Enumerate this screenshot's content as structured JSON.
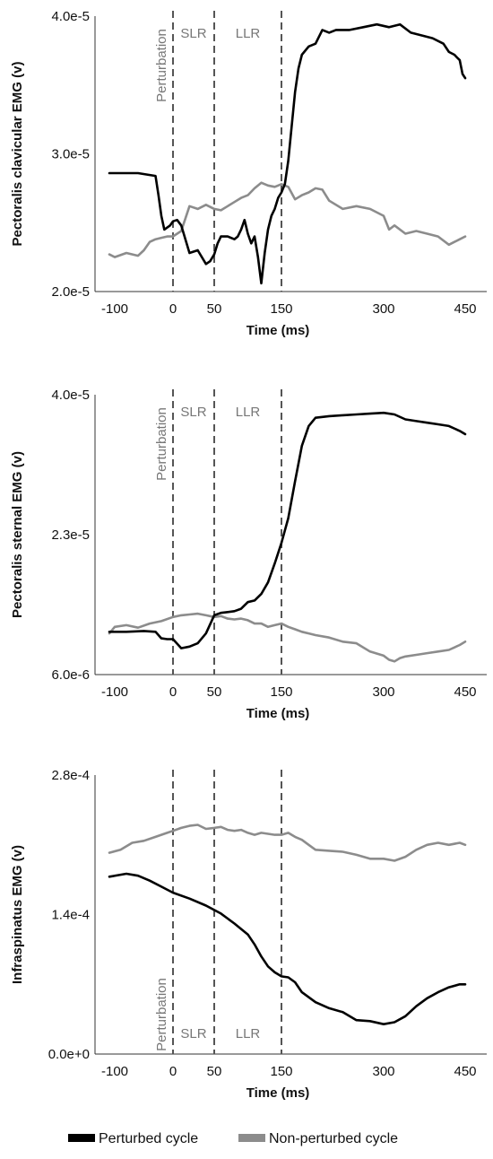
{
  "colors": {
    "perturbed": "#000000",
    "non_perturbed": "#8c8c8c",
    "marker": "#555555",
    "phase_text": "#777777"
  },
  "legend": [
    {
      "label": "Perturbed cycle",
      "series": "perturbed"
    },
    {
      "label": "Non-perturbed cycle",
      "series": "non_perturbed"
    }
  ],
  "chart_data": [
    {
      "type": "line",
      "title": "",
      "xlabel": "Time (ms)",
      "ylabel": "Pectoralis clavicular EMG (v)",
      "x_ticks": [
        "-100",
        "0",
        "50",
        "150",
        "300",
        "450"
      ],
      "y_ticks": [
        "2.0e-5",
        "3.0e-5",
        "4.0e-5"
      ],
      "ylim": [
        2e-05,
        4e-05
      ],
      "markers": [
        0,
        50,
        150
      ],
      "phase_labels": {
        "perturbation": "Perturbation",
        "slr": "SLR",
        "llr": "LLR"
      },
      "phase_labels_position": "top",
      "series": [
        {
          "key": "perturbed",
          "x": [
            -110,
            -60,
            -30,
            -25,
            -20,
            -15,
            -5,
            0,
            5,
            10,
            20,
            30,
            40,
            45,
            50,
            55,
            60,
            70,
            80,
            85,
            90,
            95,
            100,
            105,
            110,
            115,
            120,
            125,
            130,
            135,
            140,
            145,
            150,
            155,
            160,
            165,
            170,
            175,
            180,
            190,
            200,
            210,
            220,
            230,
            250,
            270,
            290,
            310,
            330,
            350,
            370,
            390,
            410,
            420,
            430,
            435,
            440,
            445,
            450
          ],
          "y": [
            2.86e-05,
            2.86e-05,
            2.84e-05,
            2.7e-05,
            2.55e-05,
            2.45e-05,
            2.48e-05,
            2.51e-05,
            2.52e-05,
            2.48e-05,
            2.28e-05,
            2.3e-05,
            2.2e-05,
            2.22e-05,
            2.27e-05,
            2.35e-05,
            2.4e-05,
            2.4e-05,
            2.38e-05,
            2.4e-05,
            2.45e-05,
            2.52e-05,
            2.42e-05,
            2.35e-05,
            2.4e-05,
            2.25e-05,
            2.06e-05,
            2.28e-05,
            2.45e-05,
            2.55e-05,
            2.6e-05,
            2.68e-05,
            2.72e-05,
            2.78e-05,
            2.95e-05,
            3.2e-05,
            3.45e-05,
            3.62e-05,
            3.72e-05,
            3.78e-05,
            3.8e-05,
            3.9e-05,
            3.88e-05,
            3.9e-05,
            3.9e-05,
            3.92e-05,
            3.94e-05,
            3.92e-05,
            3.94e-05,
            3.88e-05,
            3.86e-05,
            3.84e-05,
            3.8e-05,
            3.74e-05,
            3.72e-05,
            3.7e-05,
            3.68e-05,
            3.58e-05,
            3.55e-05
          ]
        },
        {
          "key": "non_perturbed",
          "x": [
            -110,
            -100,
            -80,
            -60,
            -50,
            -40,
            -30,
            -20,
            -10,
            0,
            10,
            20,
            30,
            40,
            50,
            60,
            70,
            80,
            90,
            100,
            110,
            120,
            130,
            140,
            150,
            160,
            170,
            180,
            190,
            200,
            210,
            220,
            240,
            260,
            280,
            300,
            310,
            320,
            340,
            360,
            380,
            400,
            420,
            430,
            440,
            450
          ],
          "y": [
            2.27e-05,
            2.25e-05,
            2.28e-05,
            2.26e-05,
            2.3e-05,
            2.36e-05,
            2.38e-05,
            2.39e-05,
            2.4e-05,
            2.4e-05,
            2.44e-05,
            2.62e-05,
            2.6e-05,
            2.63e-05,
            2.6e-05,
            2.59e-05,
            2.62e-05,
            2.65e-05,
            2.68e-05,
            2.7e-05,
            2.75e-05,
            2.79e-05,
            2.77e-05,
            2.76e-05,
            2.78e-05,
            2.76e-05,
            2.67e-05,
            2.7e-05,
            2.72e-05,
            2.75e-05,
            2.74e-05,
            2.66e-05,
            2.6e-05,
            2.62e-05,
            2.6e-05,
            2.55e-05,
            2.45e-05,
            2.48e-05,
            2.42e-05,
            2.44e-05,
            2.42e-05,
            2.4e-05,
            2.34e-05,
            2.36e-05,
            2.38e-05,
            2.4e-05
          ]
        }
      ]
    },
    {
      "type": "line",
      "title": "",
      "xlabel": "Time (ms)",
      "ylabel": "Pectoralis sternal EMG (v)",
      "x_ticks": [
        "-100",
        "0",
        "50",
        "150",
        "300",
        "450"
      ],
      "y_ticks": [
        "6.0e-6",
        "2.3e-5",
        "4.0e-5"
      ],
      "ylim": [
        6e-06,
        4e-05
      ],
      "markers": [
        0,
        50,
        150
      ],
      "phase_labels": {
        "perturbation": "Perturbation",
        "slr": "SLR",
        "llr": "LLR"
      },
      "phase_labels_position": "top",
      "series": [
        {
          "key": "perturbed",
          "x": [
            -110,
            -80,
            -50,
            -30,
            -20,
            -10,
            0,
            10,
            20,
            30,
            40,
            50,
            60,
            70,
            80,
            90,
            100,
            110,
            120,
            130,
            140,
            150,
            160,
            170,
            180,
            190,
            200,
            220,
            240,
            260,
            280,
            300,
            320,
            340,
            360,
            380,
            400,
            420,
            440,
            450
          ],
          "y": [
            1.12e-05,
            1.12e-05,
            1.13e-05,
            1.12e-05,
            1.04e-05,
            1.03e-05,
            1.03e-05,
            9.2e-06,
            9.4e-06,
            9.8e-06,
            1.1e-05,
            1.32e-05,
            1.35e-05,
            1.36e-05,
            1.37e-05,
            1.4e-05,
            1.48e-05,
            1.5e-05,
            1.58e-05,
            1.72e-05,
            1.95e-05,
            2.2e-05,
            2.5e-05,
            2.95e-05,
            3.38e-05,
            3.62e-05,
            3.72e-05,
            3.74e-05,
            3.75e-05,
            3.76e-05,
            3.77e-05,
            3.78e-05,
            3.76e-05,
            3.7e-05,
            3.68e-05,
            3.66e-05,
            3.64e-05,
            3.62e-05,
            3.56e-05,
            3.52e-05
          ]
        },
        {
          "key": "non_perturbed",
          "x": [
            -110,
            -100,
            -80,
            -60,
            -40,
            -20,
            0,
            10,
            20,
            30,
            40,
            50,
            60,
            70,
            80,
            90,
            100,
            110,
            120,
            130,
            140,
            150,
            160,
            170,
            180,
            190,
            200,
            220,
            240,
            260,
            280,
            300,
            310,
            320,
            330,
            340,
            360,
            380,
            400,
            420,
            440,
            450
          ],
          "y": [
            1.1e-05,
            1.18e-05,
            1.2e-05,
            1.17e-05,
            1.22e-05,
            1.25e-05,
            1.3e-05,
            1.32e-05,
            1.33e-05,
            1.34e-05,
            1.32e-05,
            1.3e-05,
            1.31e-05,
            1.28e-05,
            1.27e-05,
            1.28e-05,
            1.26e-05,
            1.22e-05,
            1.22e-05,
            1.18e-05,
            1.2e-05,
            1.22e-05,
            1.18e-05,
            1.15e-05,
            1.12e-05,
            1.1e-05,
            1.08e-05,
            1.05e-05,
            1e-05,
            9.8e-06,
            8.8e-06,
            8.3e-06,
            7.8e-06,
            7.6e-06,
            8e-06,
            8.2e-06,
            8.4e-06,
            8.6e-06,
            8.8e-06,
            9e-06,
            9.6e-06,
            1e-05
          ]
        }
      ]
    },
    {
      "type": "line",
      "title": "",
      "xlabel": "Time (ms)",
      "ylabel": "Infraspinatus EMG (v)",
      "x_ticks": [
        "-100",
        "0",
        "50",
        "150",
        "300",
        "450"
      ],
      "y_ticks": [
        "0.0e+0",
        "1.4e-4",
        "2.8e-4"
      ],
      "ylim": [
        0.0,
        0.00028
      ],
      "markers": [
        0,
        50,
        150
      ],
      "phase_labels": {
        "perturbation": "Perturbation",
        "slr": "SLR",
        "llr": "LLR"
      },
      "phase_labels_position": "bottom",
      "series": [
        {
          "key": "perturbed",
          "x": [
            -110,
            -80,
            -60,
            -40,
            -20,
            0,
            20,
            40,
            60,
            80,
            100,
            110,
            120,
            130,
            140,
            150,
            160,
            170,
            180,
            200,
            220,
            240,
            260,
            280,
            300,
            320,
            340,
            360,
            380,
            400,
            420,
            440,
            450
          ],
          "y": [
            0.000178,
            0.000181,
            0.000179,
            0.000174,
            0.000168,
            0.000162,
            0.000156,
            0.000149,
            0.000141,
            0.000131,
            0.00012,
            0.00011,
            9.8e-05,
            8.8e-05,
            8.2e-05,
            7.8e-05,
            7.7e-05,
            7.2e-05,
            6.2e-05,
            5.2e-05,
            4.6e-05,
            4.2e-05,
            3.4e-05,
            3.3e-05,
            3e-05,
            3.2e-05,
            3.8e-05,
            4.8e-05,
            5.6e-05,
            6.2e-05,
            6.7e-05,
            7e-05,
            7e-05
          ]
        },
        {
          "key": "non_perturbed",
          "x": [
            -110,
            -90,
            -70,
            -50,
            -30,
            -10,
            0,
            10,
            20,
            30,
            40,
            50,
            60,
            70,
            80,
            90,
            100,
            110,
            120,
            130,
            140,
            150,
            160,
            170,
            180,
            190,
            200,
            220,
            240,
            260,
            280,
            300,
            320,
            340,
            360,
            380,
            400,
            420,
            440,
            450
          ],
          "y": [
            0.000202,
            0.000205,
            0.000212,
            0.000214,
            0.000218,
            0.000222,
            0.000224,
            0.000227,
            0.000229,
            0.00023,
            0.000226,
            0.000227,
            0.000228,
            0.000225,
            0.000224,
            0.000225,
            0.000222,
            0.00022,
            0.000222,
            0.000221,
            0.00022,
            0.00022,
            0.000222,
            0.000218,
            0.000215,
            0.00021,
            0.000205,
            0.000204,
            0.000203,
            0.0002,
            0.000196,
            0.000196,
            0.000194,
            0.000198,
            0.000205,
            0.00021,
            0.000212,
            0.00021,
            0.000212,
            0.00021
          ]
        }
      ]
    }
  ]
}
